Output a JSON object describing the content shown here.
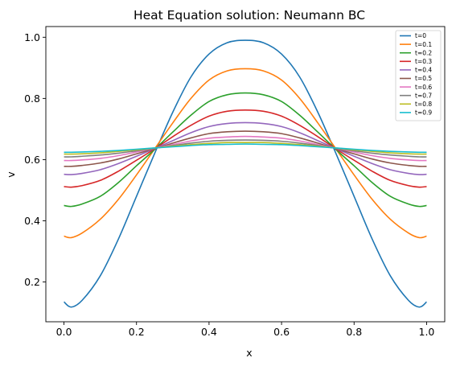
{
  "chart_data": {
    "type": "line",
    "title": "Heat Equation solution: Neumann BC",
    "xlabel": "x",
    "ylabel": "v",
    "xlim": [
      -0.05,
      1.05
    ],
    "ylim": [
      0.07,
      1.035
    ],
    "x_ticks": [
      {
        "value": 0.0,
        "label": "0.0"
      },
      {
        "value": 0.2,
        "label": "0.2"
      },
      {
        "value": 0.4,
        "label": "0.4"
      },
      {
        "value": 0.6,
        "label": "0.6"
      },
      {
        "value": 0.8,
        "label": "0.8"
      },
      {
        "value": 1.0,
        "label": "1.0"
      }
    ],
    "y_ticks": [
      {
        "value": 0.2,
        "label": "0.2"
      },
      {
        "value": 0.4,
        "label": "0.4"
      },
      {
        "value": 0.6,
        "label": "0.6"
      },
      {
        "value": 0.8,
        "label": "0.8"
      },
      {
        "value": 1.0,
        "label": "1.0"
      }
    ],
    "grid": false,
    "legend_position": "top-right",
    "x": [
      0.0,
      0.02,
      0.05,
      0.1,
      0.15,
      0.2,
      0.25,
      0.3,
      0.35,
      0.4,
      0.45,
      0.5,
      0.55,
      0.6,
      0.65,
      0.7,
      0.75,
      0.8,
      0.85,
      0.9,
      0.95,
      0.98,
      1.0
    ],
    "series": [
      {
        "name": "t=0",
        "color": "#1f77b4",
        "values": [
          0.135,
          0.118,
          0.14,
          0.22,
          0.34,
          0.48,
          0.62,
          0.755,
          0.87,
          0.945,
          0.982,
          0.99,
          0.982,
          0.945,
          0.87,
          0.755,
          0.62,
          0.48,
          0.34,
          0.22,
          0.14,
          0.118,
          0.135
        ]
      },
      {
        "name": "t=0.1",
        "color": "#ff7f0e",
        "values": [
          0.35,
          0.345,
          0.36,
          0.405,
          0.47,
          0.55,
          0.635,
          0.72,
          0.8,
          0.86,
          0.89,
          0.897,
          0.89,
          0.86,
          0.8,
          0.72,
          0.635,
          0.55,
          0.47,
          0.405,
          0.36,
          0.345,
          0.35
        ]
      },
      {
        "name": "t=0.2",
        "color": "#2ca02c",
        "values": [
          0.45,
          0.447,
          0.455,
          0.48,
          0.525,
          0.58,
          0.633,
          0.69,
          0.745,
          0.79,
          0.812,
          0.818,
          0.812,
          0.79,
          0.745,
          0.69,
          0.633,
          0.58,
          0.525,
          0.48,
          0.455,
          0.447,
          0.45
        ]
      },
      {
        "name": "t=0.3",
        "color": "#d62728",
        "values": [
          0.512,
          0.51,
          0.515,
          0.532,
          0.562,
          0.598,
          0.635,
          0.675,
          0.712,
          0.742,
          0.758,
          0.762,
          0.758,
          0.742,
          0.712,
          0.675,
          0.635,
          0.598,
          0.562,
          0.532,
          0.515,
          0.51,
          0.512
        ]
      },
      {
        "name": "t=0.4",
        "color": "#9467bd",
        "values": [
          0.552,
          0.551,
          0.555,
          0.567,
          0.587,
          0.611,
          0.636,
          0.662,
          0.688,
          0.708,
          0.718,
          0.721,
          0.718,
          0.708,
          0.688,
          0.662,
          0.636,
          0.611,
          0.587,
          0.567,
          0.555,
          0.551,
          0.552
        ]
      },
      {
        "name": "t=0.5",
        "color": "#8c564b",
        "values": [
          0.578,
          0.578,
          0.581,
          0.589,
          0.602,
          0.619,
          0.636,
          0.654,
          0.671,
          0.685,
          0.691,
          0.693,
          0.691,
          0.685,
          0.671,
          0.654,
          0.636,
          0.619,
          0.602,
          0.589,
          0.581,
          0.578,
          0.578
        ]
      },
      {
        "name": "t=0.6",
        "color": "#e377c2",
        "values": [
          0.597,
          0.597,
          0.599,
          0.604,
          0.613,
          0.625,
          0.637,
          0.649,
          0.661,
          0.67,
          0.674,
          0.676,
          0.674,
          0.67,
          0.661,
          0.649,
          0.637,
          0.625,
          0.613,
          0.604,
          0.599,
          0.597,
          0.597
        ]
      },
      {
        "name": "t=0.7",
        "color": "#7f7f7f",
        "values": [
          0.609,
          0.609,
          0.611,
          0.615,
          0.621,
          0.629,
          0.637,
          0.646,
          0.654,
          0.66,
          0.663,
          0.664,
          0.663,
          0.66,
          0.654,
          0.646,
          0.637,
          0.629,
          0.621,
          0.615,
          0.611,
          0.609,
          0.609
        ]
      },
      {
        "name": "t=0.8",
        "color": "#bcbd22",
        "values": [
          0.618,
          0.618,
          0.619,
          0.622,
          0.627,
          0.632,
          0.638,
          0.644,
          0.649,
          0.653,
          0.656,
          0.656,
          0.656,
          0.653,
          0.649,
          0.644,
          0.638,
          0.632,
          0.627,
          0.622,
          0.619,
          0.618,
          0.618
        ]
      },
      {
        "name": "t=0.9",
        "color": "#17becf",
        "values": [
          0.624,
          0.624,
          0.625,
          0.627,
          0.63,
          0.634,
          0.638,
          0.642,
          0.646,
          0.649,
          0.65,
          0.651,
          0.65,
          0.649,
          0.646,
          0.642,
          0.638,
          0.634,
          0.63,
          0.627,
          0.625,
          0.624,
          0.624
        ]
      }
    ]
  }
}
